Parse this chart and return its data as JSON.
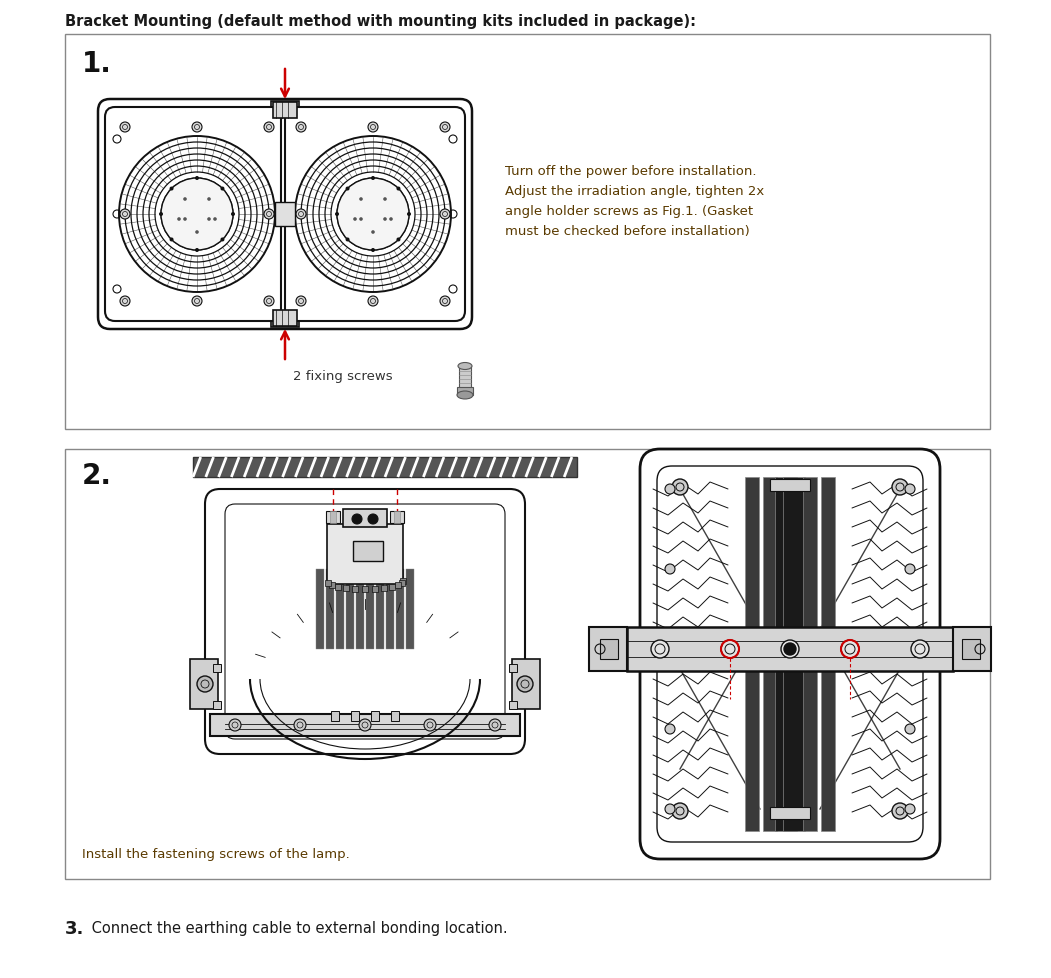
{
  "title": "Bracket Mounting (default method with mounting kits included in package):",
  "title_color": "#1a1a1a",
  "title_fontsize": 10.5,
  "bg_color": "#ffffff",
  "box_edge_color": "#555555",
  "step1_number": "1.",
  "step1_number_fontsize": 20,
  "step1_text": "Turn off the power before installation.\nAdjust the irradiation angle, tighten 2x\nangle holder screws as Fig.1. (Gasket\nmust be checked before installation)",
  "step1_text_color": "#5a3a00",
  "step1_text_fontsize": 9.5,
  "step1_screw_label": "2 fixing screws",
  "step1_screw_label_color": "#333333",
  "step1_screw_label_fontsize": 9.5,
  "step2_number": "2.",
  "step2_number_fontsize": 20,
  "step2_text": "Install the fastening screws of the lamp.",
  "step2_text_color": "#5a3a00",
  "step2_text_fontsize": 9.5,
  "step3_bold": "3.",
  "step3_normal": " Connect the earthing cable to external bonding location.",
  "step3_fontsize": 10.5,
  "step3_bold_fontsize": 13,
  "step3_color": "#1a1a1a",
  "arrow_color": "#cc0000",
  "col": "#1a1a1a"
}
